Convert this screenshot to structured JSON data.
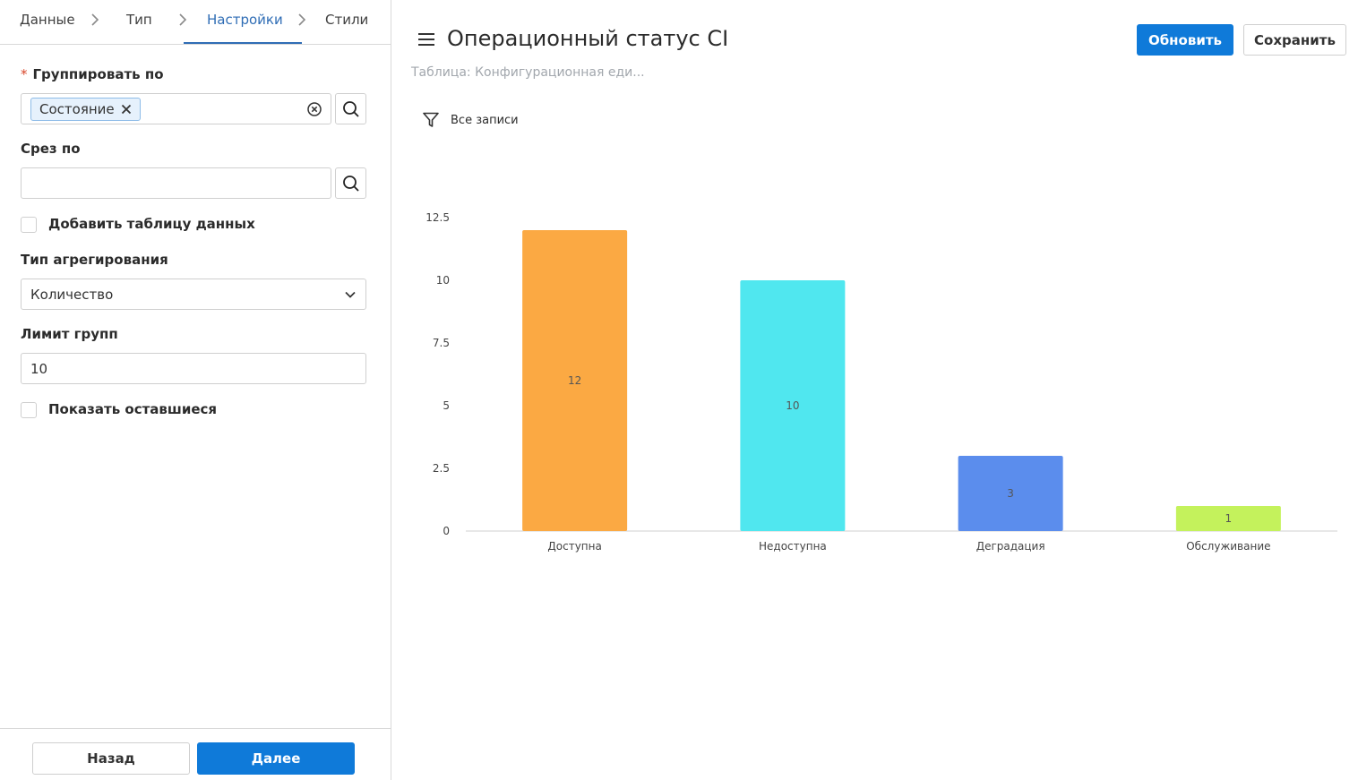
{
  "stepper": {
    "steps": [
      "Данные",
      "Тип",
      "Настройки",
      "Стили"
    ],
    "active_index": 2
  },
  "form": {
    "group_by": {
      "label": "Группировать по",
      "required_mark": "*",
      "tag": "Состояние"
    },
    "slice_by": {
      "label": "Срез по",
      "value": ""
    },
    "add_table": {
      "label": "Добавить таблицу данных",
      "checked": false
    },
    "aggregation": {
      "label": "Тип агрегирования",
      "value": "Количество"
    },
    "group_limit": {
      "label": "Лимит групп",
      "value": "10"
    },
    "show_rest": {
      "label": "Показать оставшиеся",
      "checked": false
    }
  },
  "footer": {
    "back_label": "Назад",
    "next_label": "Далее"
  },
  "header": {
    "title": "Операционный статус CI",
    "subtitle": "Таблица: Конфигурационная еди...",
    "refresh_label": "Обновить",
    "save_label": "Сохранить"
  },
  "filter": {
    "label": "Все записи"
  },
  "colors": {
    "primary": "#0f7ad9",
    "bars": [
      "#fba943",
      "#50e7ef",
      "#5b8ded",
      "#c4f25c"
    ]
  },
  "chart_data": {
    "type": "bar",
    "categories": [
      "Доступна",
      "Недоступна",
      "Деградация",
      "Обслуживание"
    ],
    "values": [
      12,
      10,
      3,
      1
    ],
    "data_labels": [
      "12",
      "10",
      "3",
      "1"
    ],
    "yticks": [
      "0",
      "2.5",
      "5",
      "7.5",
      "10",
      "12.5"
    ],
    "ytick_values": [
      0,
      2.5,
      5,
      7.5,
      10,
      12.5
    ],
    "ylim": [
      0,
      12.5
    ],
    "title": "",
    "xlabel": "",
    "ylabel": "",
    "grid": false,
    "legend": "none"
  }
}
